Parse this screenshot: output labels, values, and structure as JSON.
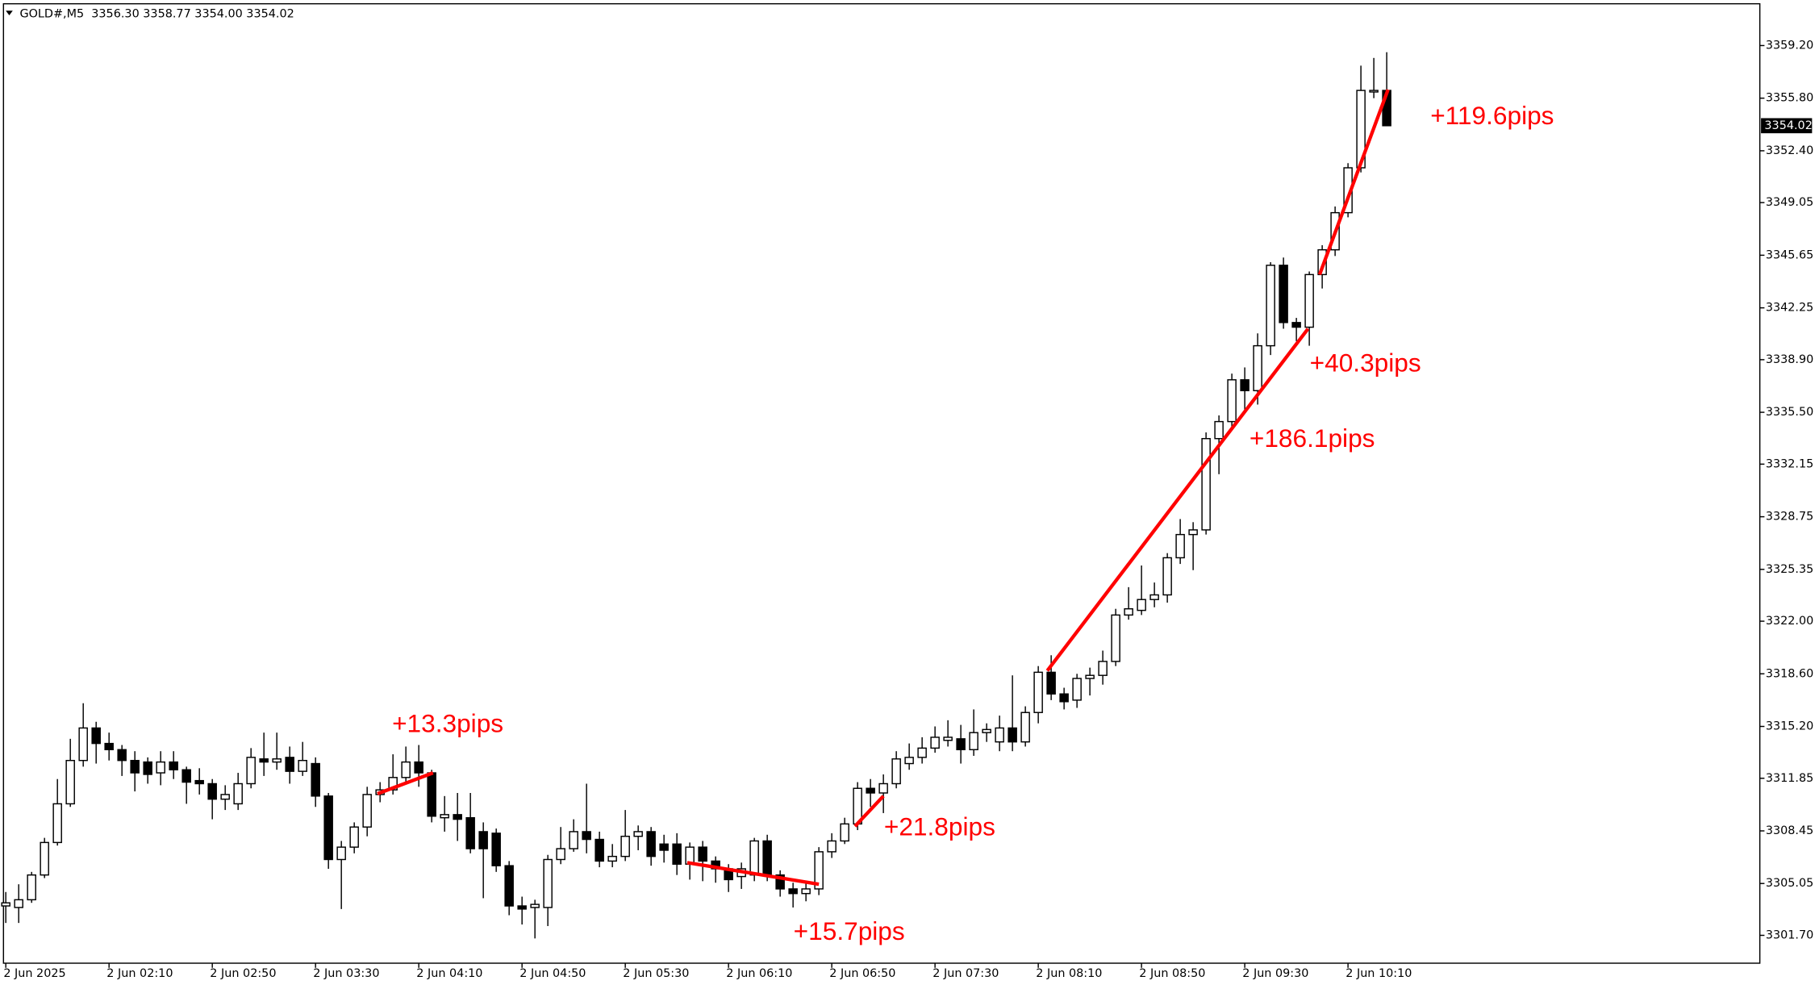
{
  "chart_data": {
    "type": "candlestick",
    "header": "GOLD#,M5  3356.30 3358.77 3354.00 3354.02",
    "categories": [
      "2 Jun 2025",
      null,
      null,
      null,
      null,
      null,
      null,
      null,
      "2 Jun 02:10",
      null,
      null,
      null,
      null,
      null,
      null,
      null,
      "2 Jun 02:50",
      null,
      null,
      null,
      null,
      null,
      null,
      null,
      "2 Jun 03:30",
      null,
      null,
      null,
      null,
      null,
      null,
      null,
      "2 Jun 04:10",
      null,
      null,
      null,
      null,
      null,
      null,
      null,
      "2 Jun 04:50",
      null,
      null,
      null,
      null,
      null,
      null,
      null,
      "2 Jun 05:30",
      null,
      null,
      null,
      null,
      null,
      null,
      null,
      "2 Jun 06:10",
      null,
      null,
      null,
      null,
      null,
      null,
      null,
      "2 Jun 06:50",
      null,
      null,
      null,
      null,
      null,
      null,
      null,
      "2 Jun 07:30",
      null,
      null,
      null,
      null,
      null,
      null,
      null,
      "2 Jun 08:10",
      null,
      null,
      null,
      null,
      null,
      null,
      null,
      "2 Jun 08:50",
      null,
      null,
      null,
      null,
      null,
      null,
      null,
      "2 Jun 09:30",
      null,
      null,
      null,
      null,
      null,
      null,
      null,
      "2 Jun 10:10",
      null,
      null,
      null
    ],
    "open": [
      3303.6,
      3303.5,
      3304.0,
      3305.6,
      3307.7,
      3310.2,
      3313.0,
      3315.1,
      3314.1,
      3313.7,
      3313.0,
      3312.9,
      3312.2,
      3312.9,
      3312.4,
      3311.7,
      3311.5,
      3310.5,
      3310.2,
      3311.5,
      3313.1,
      3312.9,
      3313.2,
      3312.3,
      3312.8,
      3310.7,
      3306.6,
      3307.4,
      3308.7,
      3310.8,
      3311.1,
      3311.9,
      3312.9,
      3312.2,
      3309.3,
      3309.5,
      3309.3,
      3308.4,
      3308.3,
      3306.2,
      3303.6,
      3303.5,
      3303.5,
      3306.6,
      3307.3,
      3308.4,
      3307.9,
      3306.5,
      3306.8,
      3308.1,
      3308.4,
      3307.6,
      3307.6,
      3306.3,
      3307.4,
      3306.5,
      3306.0,
      3305.5,
      3305.6,
      3307.8,
      3305.6,
      3304.7,
      3304.4,
      3304.7,
      3307.1,
      3307.8,
      3308.9,
      3311.2,
      3310.9,
      3311.5,
      3312.8,
      3313.2,
      3313.8,
      3314.3,
      3314.4,
      3313.7,
      3314.8,
      3314.2,
      3315.1,
      3314.2,
      3316.1,
      3318.7,
      3317.3,
      3316.9,
      3318.3,
      3318.5,
      3319.4,
      3322.4,
      3322.7,
      3323.4,
      3323.7,
      3326.1,
      3327.6,
      3327.9,
      3333.8,
      3334.9,
      3337.6,
      3336.9,
      3339.8,
      3345.0,
      3341.3,
      3341.0,
      3344.4,
      3346.0,
      3348.4,
      3351.3,
      3356.2,
      3356.3
    ],
    "high": [
      3304.5,
      3305.0,
      3305.8,
      3308.0,
      3311.8,
      3314.4,
      3316.7,
      3315.5,
      3314.8,
      3314.0,
      3313.6,
      3313.2,
      3313.6,
      3313.6,
      3312.6,
      3312.5,
      3311.8,
      3311.4,
      3312.2,
      3313.8,
      3314.8,
      3314.8,
      3313.9,
      3314.2,
      3313.2,
      3310.9,
      3307.8,
      3309.0,
      3311.3,
      3311.6,
      3313.4,
      3313.9,
      3314.0,
      3312.4,
      3310.7,
      3310.9,
      3310.9,
      3309.0,
      3308.6,
      3306.5,
      3304.2,
      3304.0,
      3306.9,
      3308.7,
      3309.2,
      3311.5,
      3308.4,
      3307.6,
      3309.8,
      3308.8,
      3308.7,
      3308.2,
      3308.3,
      3307.7,
      3307.8,
      3306.8,
      3306.3,
      3306.4,
      3308.0,
      3308.2,
      3305.9,
      3305.1,
      3305.2,
      3307.4,
      3308.3,
      3309.3,
      3311.6,
      3311.8,
      3312.1,
      3313.6,
      3314.1,
      3314.5,
      3315.2,
      3315.6,
      3315.3,
      3316.3,
      3315.4,
      3315.9,
      3318.5,
      3316.5,
      3319.1,
      3319.8,
      3317.7,
      3318.6,
      3319.0,
      3320.1,
      3322.8,
      3324.2,
      3325.6,
      3324.5,
      3326.4,
      3328.6,
      3328.4,
      3334.2,
      3335.3,
      3338.0,
      3338.4,
      3340.6,
      3345.2,
      3345.5,
      3341.6,
      3344.6,
      3346.3,
      3348.8,
      3351.6,
      3357.9,
      3358.4,
      3358.77
    ],
    "low": [
      3302.5,
      3302.5,
      3303.8,
      3305.4,
      3307.5,
      3310.0,
      3312.6,
      3312.8,
      3313.0,
      3312.0,
      3311.0,
      3311.5,
      3311.4,
      3311.8,
      3310.2,
      3310.8,
      3309.2,
      3309.8,
      3309.8,
      3311.2,
      3312.0,
      3312.4,
      3311.5,
      3312.0,
      3310.0,
      3306.0,
      3303.4,
      3307.0,
      3308.1,
      3310.3,
      3310.8,
      3311.6,
      3311.3,
      3309.0,
      3308.4,
      3307.8,
      3307.0,
      3304.1,
      3305.8,
      3303.0,
      3302.4,
      3301.5,
      3302.3,
      3306.3,
      3307.1,
      3307.0,
      3306.1,
      3306.1,
      3306.5,
      3307.2,
      3306.2,
      3306.4,
      3305.6,
      3305.3,
      3305.2,
      3305.1,
      3304.5,
      3304.7,
      3305.2,
      3305.2,
      3304.2,
      3303.5,
      3303.9,
      3304.3,
      3306.7,
      3307.6,
      3308.5,
      3310.0,
      3309.6,
      3311.2,
      3312.4,
      3312.8,
      3313.5,
      3313.9,
      3312.8,
      3313.3,
      3314.2,
      3313.6,
      3313.6,
      3313.9,
      3315.4,
      3316.9,
      3316.3,
      3316.4,
      3317.2,
      3317.9,
      3319.1,
      3322.1,
      3322.4,
      3322.9,
      3323.2,
      3325.7,
      3325.3,
      3327.6,
      3331.5,
      3334.4,
      3335.6,
      3336.0,
      3339.2,
      3340.9,
      3340.1,
      3339.8,
      3343.5,
      3345.6,
      3348.1,
      3351.0,
      3355.8,
      3354.0
    ],
    "close": [
      3303.8,
      3304.0,
      3305.6,
      3307.7,
      3310.2,
      3313.0,
      3315.1,
      3314.1,
      3313.7,
      3313.0,
      3312.2,
      3312.1,
      3312.9,
      3312.4,
      3311.6,
      3311.5,
      3310.5,
      3310.8,
      3311.5,
      3313.2,
      3312.9,
      3313.1,
      3312.3,
      3313.0,
      3310.7,
      3306.6,
      3307.4,
      3308.7,
      3310.8,
      3311.1,
      3311.9,
      3312.9,
      3312.2,
      3309.4,
      3309.5,
      3309.2,
      3307.3,
      3307.3,
      3306.2,
      3303.6,
      3303.4,
      3303.7,
      3306.6,
      3307.3,
      3308.4,
      3307.9,
      3306.5,
      3306.8,
      3308.1,
      3308.4,
      3306.8,
      3307.2,
      3306.3,
      3307.4,
      3306.5,
      3306.0,
      3305.3,
      3306.0,
      3307.8,
      3305.6,
      3304.7,
      3304.4,
      3304.7,
      3307.1,
      3307.8,
      3308.9,
      3311.2,
      3310.9,
      3311.5,
      3313.1,
      3313.2,
      3313.8,
      3314.5,
      3314.5,
      3313.7,
      3314.8,
      3315.0,
      3315.1,
      3314.2,
      3316.1,
      3318.7,
      3317.3,
      3316.8,
      3318.3,
      3318.5,
      3319.4,
      3322.4,
      3322.8,
      3323.4,
      3323.7,
      3326.1,
      3327.6,
      3327.9,
      3333.8,
      3334.9,
      3337.6,
      3336.9,
      3339.8,
      3345.0,
      3341.3,
      3341.0,
      3344.4,
      3346.0,
      3348.4,
      3351.3,
      3356.3,
      3356.3,
      3354.02
    ],
    "ylim": [
      3299.9,
      3361.75
    ],
    "yticks": [
      {
        "value": 3301.7,
        "label": "3301.70"
      },
      {
        "value": 3305.05,
        "label": "3305.05"
      },
      {
        "value": 3308.45,
        "label": "3308.45"
      },
      {
        "value": 3311.85,
        "label": "3311.85"
      },
      {
        "value": 3315.2,
        "label": "3315.20"
      },
      {
        "value": 3318.6,
        "label": "3318.60"
      },
      {
        "value": 3322.0,
        "label": "3322.00"
      },
      {
        "value": 3325.35,
        "label": "3325.35"
      },
      {
        "value": 3328.75,
        "label": "3328.75"
      },
      {
        "value": 3332.15,
        "label": "3332.15"
      },
      {
        "value": 3335.5,
        "label": "3335.50"
      },
      {
        "value": 3338.9,
        "label": "3338.90"
      },
      {
        "value": 3342.25,
        "label": "3342.25"
      },
      {
        "value": 3345.65,
        "label": "3345.65"
      },
      {
        "value": 3349.05,
        "label": "3349.05"
      },
      {
        "value": 3352.4,
        "label": "3352.40"
      },
      {
        "value": 3355.8,
        "label": "3355.80"
      },
      {
        "value": 3359.2,
        "label": "3359.20"
      }
    ],
    "trend_lines": [
      {
        "x": [
          28.8,
          33.1
        ],
        "y": [
          3310.85,
          3312.2
        ]
      },
      {
        "x": [
          52.8,
          63.0
        ],
        "y": [
          3306.4,
          3305.0
        ]
      },
      {
        "x": [
          65.8,
          68.0
        ],
        "y": [
          3308.75,
          3310.7
        ]
      },
      {
        "x": [
          80.7,
          100.9
        ],
        "y": [
          3318.8,
          3340.9
        ]
      },
      {
        "x": [
          101.8,
          107.1
        ],
        "y": [
          3344.4,
          3356.35
        ]
      }
    ],
    "annotations": [
      "+13.3pips",
      "+15.7pips",
      "+21.8pips",
      "+186.1pips",
      "+40.3pips",
      "+119.6pips"
    ],
    "line_color": "#ff0000",
    "up_color": "#ffffff",
    "down_color": "#000000"
  }
}
